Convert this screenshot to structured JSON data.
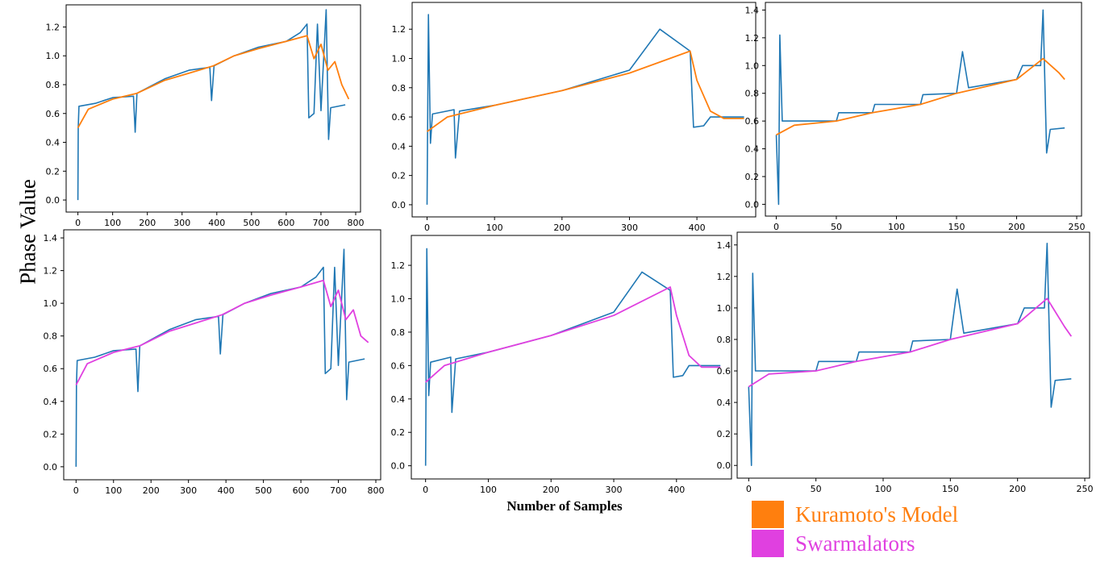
{
  "figure": {
    "ylabel": "Phase Value",
    "xlabel": "Number of Samples",
    "legend": [
      {
        "label": "Kuramoto's Model",
        "color": "#ff7f0e"
      },
      {
        "label": "Swarmalators",
        "color": "#e040e0"
      }
    ],
    "data_color": "#1f77b4"
  },
  "chart_data": [
    {
      "type": "line",
      "panel": "top-left",
      "model": "Kuramoto's Model",
      "xlim": [
        -20,
        800
      ],
      "ylim": [
        -0.05,
        1.32
      ],
      "xticks": [
        "0",
        "100",
        "200",
        "300",
        "400",
        "500",
        "600",
        "700",
        "800"
      ],
      "yticks": [
        "0.0",
        "0.2",
        "0.4",
        "0.6",
        "0.8",
        "1.0",
        "1.2"
      ],
      "series": [
        {
          "values": [
            [
              0,
              0.0
            ],
            [
              1,
              0.5
            ],
            [
              3,
              0.65
            ],
            [
              50,
              0.67
            ],
            [
              100,
              0.71
            ],
            [
              160,
              0.72
            ],
            [
              165,
              0.47
            ],
            [
              170,
              0.74
            ],
            [
              250,
              0.84
            ],
            [
              320,
              0.9
            ],
            [
              380,
              0.92
            ],
            [
              385,
              0.69
            ],
            [
              392,
              0.93
            ],
            [
              450,
              1.0
            ],
            [
              520,
              1.06
            ],
            [
              600,
              1.1
            ],
            [
              640,
              1.16
            ],
            [
              660,
              1.22
            ],
            [
              665,
              0.57
            ],
            [
              680,
              0.6
            ],
            [
              690,
              1.22
            ],
            [
              700,
              0.62
            ],
            [
              715,
              1.32
            ],
            [
              722,
              0.42
            ],
            [
              728,
              0.64
            ],
            [
              770,
              0.66
            ]
          ]
        },
        {
          "values": [
            [
              0,
              0.5
            ],
            [
              30,
              0.63
            ],
            [
              100,
              0.7
            ],
            [
              170,
              0.74
            ],
            [
              250,
              0.83
            ],
            [
              320,
              0.88
            ],
            [
              390,
              0.93
            ],
            [
              450,
              1.0
            ],
            [
              520,
              1.05
            ],
            [
              600,
              1.1
            ],
            [
              660,
              1.14
            ],
            [
              680,
              0.98
            ],
            [
              700,
              1.08
            ],
            [
              720,
              0.9
            ],
            [
              740,
              0.96
            ],
            [
              760,
              0.8
            ],
            [
              780,
              0.7
            ]
          ]
        }
      ]
    },
    {
      "type": "line",
      "panel": "top-middle",
      "model": "Kuramoto's Model",
      "xlim": [
        -15,
        480
      ],
      "ylim": [
        -0.05,
        1.35
      ],
      "xticks": [
        "0",
        "100",
        "200",
        "300",
        "400"
      ],
      "yticks": [
        "0.0",
        "0.2",
        "0.4",
        "0.6",
        "0.8",
        "1.0",
        "1.2"
      ],
      "series": [
        {
          "values": [
            [
              0,
              0.0
            ],
            [
              2,
              1.3
            ],
            [
              5,
              0.42
            ],
            [
              8,
              0.62
            ],
            [
              40,
              0.65
            ],
            [
              42,
              0.32
            ],
            [
              48,
              0.64
            ],
            [
              100,
              0.68
            ],
            [
              200,
              0.78
            ],
            [
              300,
              0.92
            ],
            [
              345,
              1.2
            ],
            [
              390,
              1.05
            ],
            [
              395,
              0.53
            ],
            [
              410,
              0.54
            ],
            [
              420,
              0.6
            ],
            [
              470,
              0.6
            ]
          ]
        },
        {
          "values": [
            [
              0,
              0.5
            ],
            [
              30,
              0.6
            ],
            [
              100,
              0.68
            ],
            [
              200,
              0.78
            ],
            [
              300,
              0.9
            ],
            [
              390,
              1.05
            ],
            [
              400,
              0.85
            ],
            [
              420,
              0.64
            ],
            [
              440,
              0.59
            ],
            [
              470,
              0.59
            ]
          ]
        }
      ]
    },
    {
      "type": "line",
      "panel": "top-right",
      "model": "Kuramoto's Model",
      "xlim": [
        -5,
        250
      ],
      "ylim": [
        -0.05,
        1.42
      ],
      "xticks": [
        "0",
        "50",
        "100",
        "150",
        "200",
        "250"
      ],
      "yticks": [
        "0.0",
        "0.2",
        "0.4",
        "0.6",
        "0.8",
        "1.0",
        "1.2",
        "1.4"
      ],
      "series": [
        {
          "values": [
            [
              0,
              0.5
            ],
            [
              2,
              0.0
            ],
            [
              3,
              1.22
            ],
            [
              5,
              0.6
            ],
            [
              50,
              0.6
            ],
            [
              52,
              0.66
            ],
            [
              80,
              0.66
            ],
            [
              82,
              0.72
            ],
            [
              120,
              0.72
            ],
            [
              122,
              0.79
            ],
            [
              150,
              0.8
            ],
            [
              155,
              1.1
            ],
            [
              160,
              0.84
            ],
            [
              200,
              0.9
            ],
            [
              205,
              1.0
            ],
            [
              220,
              1.0
            ],
            [
              222,
              1.4
            ],
            [
              225,
              0.37
            ],
            [
              228,
              0.54
            ],
            [
              240,
              0.55
            ]
          ]
        },
        {
          "values": [
            [
              0,
              0.5
            ],
            [
              15,
              0.57
            ],
            [
              50,
              0.6
            ],
            [
              80,
              0.66
            ],
            [
              120,
              0.72
            ],
            [
              150,
              0.8
            ],
            [
              200,
              0.9
            ],
            [
              222,
              1.05
            ],
            [
              235,
              0.95
            ],
            [
              240,
              0.9
            ]
          ]
        }
      ]
    },
    {
      "type": "line",
      "panel": "bottom-left",
      "model": "Swarmalators",
      "xlim": [
        -20,
        800
      ],
      "ylim": [
        -0.05,
        1.42
      ],
      "xticks": [
        "0",
        "100",
        "200",
        "300",
        "400",
        "500",
        "600",
        "700",
        "800"
      ],
      "yticks": [
        "0.0",
        "0.2",
        "0.4",
        "0.6",
        "0.8",
        "1.0",
        "1.2",
        "1.4"
      ],
      "series": [
        {
          "values": [
            [
              0,
              0.0
            ],
            [
              1,
              0.5
            ],
            [
              3,
              0.65
            ],
            [
              50,
              0.67
            ],
            [
              100,
              0.71
            ],
            [
              160,
              0.72
            ],
            [
              165,
              0.46
            ],
            [
              170,
              0.74
            ],
            [
              250,
              0.84
            ],
            [
              320,
              0.9
            ],
            [
              380,
              0.92
            ],
            [
              385,
              0.69
            ],
            [
              392,
              0.93
            ],
            [
              450,
              1.0
            ],
            [
              520,
              1.06
            ],
            [
              600,
              1.1
            ],
            [
              640,
              1.16
            ],
            [
              660,
              1.22
            ],
            [
              665,
              0.57
            ],
            [
              680,
              0.6
            ],
            [
              690,
              1.22
            ],
            [
              700,
              0.62
            ],
            [
              715,
              1.33
            ],
            [
              722,
              0.41
            ],
            [
              728,
              0.64
            ],
            [
              770,
              0.66
            ]
          ]
        },
        {
          "values": [
            [
              0,
              0.5
            ],
            [
              30,
              0.63
            ],
            [
              100,
              0.7
            ],
            [
              170,
              0.74
            ],
            [
              250,
              0.83
            ],
            [
              320,
              0.88
            ],
            [
              390,
              0.93
            ],
            [
              450,
              1.0
            ],
            [
              520,
              1.05
            ],
            [
              600,
              1.1
            ],
            [
              660,
              1.14
            ],
            [
              680,
              0.98
            ],
            [
              700,
              1.08
            ],
            [
              720,
              0.9
            ],
            [
              740,
              0.96
            ],
            [
              760,
              0.8
            ],
            [
              780,
              0.76
            ]
          ]
        }
      ]
    },
    {
      "type": "line",
      "panel": "bottom-middle",
      "model": "Swarmalators",
      "xlim": [
        -15,
        480
      ],
      "ylim": [
        -0.05,
        1.35
      ],
      "xticks": [
        "0",
        "100",
        "200",
        "300",
        "400"
      ],
      "yticks": [
        "0.0",
        "0.2",
        "0.4",
        "0.6",
        "0.8",
        "1.0",
        "1.2"
      ],
      "series": [
        {
          "values": [
            [
              0,
              0.0
            ],
            [
              2,
              1.3
            ],
            [
              5,
              0.42
            ],
            [
              8,
              0.62
            ],
            [
              40,
              0.65
            ],
            [
              42,
              0.32
            ],
            [
              48,
              0.64
            ],
            [
              100,
              0.68
            ],
            [
              200,
              0.78
            ],
            [
              300,
              0.92
            ],
            [
              345,
              1.16
            ],
            [
              390,
              1.05
            ],
            [
              395,
              0.53
            ],
            [
              410,
              0.54
            ],
            [
              420,
              0.6
            ],
            [
              470,
              0.6
            ]
          ]
        },
        {
          "values": [
            [
              0,
              0.5
            ],
            [
              30,
              0.6
            ],
            [
              100,
              0.68
            ],
            [
              200,
              0.78
            ],
            [
              300,
              0.9
            ],
            [
              390,
              1.07
            ],
            [
              400,
              0.9
            ],
            [
              420,
              0.66
            ],
            [
              440,
              0.59
            ],
            [
              470,
              0.59
            ]
          ]
        }
      ]
    },
    {
      "type": "line",
      "panel": "bottom-right",
      "model": "Swarmalators",
      "xlim": [
        -5,
        250
      ],
      "ylim": [
        -0.05,
        1.45
      ],
      "xticks": [
        "0",
        "50",
        "100",
        "150",
        "200",
        "250"
      ],
      "yticks": [
        "0.0",
        "0.2",
        "0.4",
        "0.6",
        "0.8",
        "1.0",
        "1.2",
        "1.4"
      ],
      "series": [
        {
          "values": [
            [
              0,
              0.5
            ],
            [
              2,
              0.0
            ],
            [
              3,
              1.22
            ],
            [
              5,
              0.6
            ],
            [
              50,
              0.6
            ],
            [
              52,
              0.66
            ],
            [
              80,
              0.66
            ],
            [
              82,
              0.72
            ],
            [
              120,
              0.72
            ],
            [
              122,
              0.79
            ],
            [
              150,
              0.8
            ],
            [
              155,
              1.12
            ],
            [
              160,
              0.84
            ],
            [
              200,
              0.9
            ],
            [
              205,
              1.0
            ],
            [
              220,
              1.0
            ],
            [
              222,
              1.41
            ],
            [
              225,
              0.37
            ],
            [
              228,
              0.54
            ],
            [
              240,
              0.55
            ]
          ]
        },
        {
          "values": [
            [
              0,
              0.5
            ],
            [
              15,
              0.58
            ],
            [
              50,
              0.6
            ],
            [
              80,
              0.66
            ],
            [
              120,
              0.72
            ],
            [
              150,
              0.8
            ],
            [
              200,
              0.9
            ],
            [
              222,
              1.06
            ],
            [
              235,
              0.88
            ],
            [
              240,
              0.82
            ]
          ]
        }
      ]
    }
  ]
}
